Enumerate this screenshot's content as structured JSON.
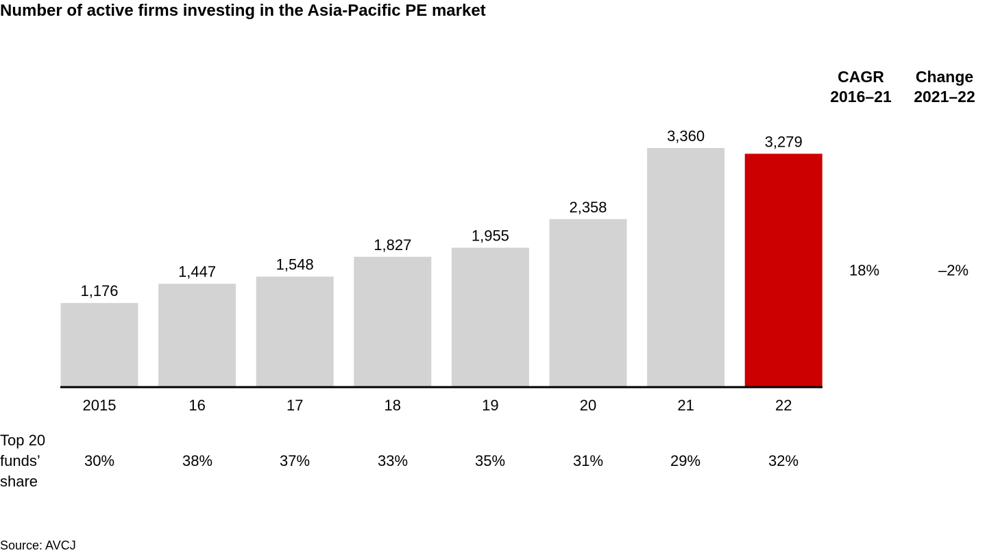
{
  "title": "Number of active firms investing in the Asia-Pacific PE market",
  "columns": {
    "cagr": {
      "line1": "CAGR",
      "line2": "2016–21",
      "value": "18%"
    },
    "change": {
      "line1": "Change",
      "line2": "2021–22",
      "value": "–2%"
    }
  },
  "share": {
    "label_lines": [
      "Top 20",
      "funds’",
      "share"
    ],
    "values": [
      "30%",
      "38%",
      "37%",
      "33%",
      "35%",
      "31%",
      "29%",
      "32%"
    ]
  },
  "source": "Source: AVCJ",
  "colors": {
    "bar": "#d3d3d3",
    "highlight": "#cc0000",
    "axis": "#000000"
  },
  "chart_data": {
    "type": "bar",
    "title": "Number of active firms investing in the Asia-Pacific PE market",
    "categories": [
      "2015",
      "16",
      "17",
      "18",
      "19",
      "20",
      "21",
      "22"
    ],
    "values": [
      1176,
      1447,
      1548,
      1827,
      1955,
      2358,
      3360,
      3279
    ],
    "value_labels": [
      "1,176",
      "1,447",
      "1,548",
      "1,827",
      "1,955",
      "2,358",
      "3,360",
      "3,279"
    ],
    "highlight_index": 7,
    "ylim": [
      0,
      3360
    ],
    "grid": false,
    "legend": "none"
  }
}
